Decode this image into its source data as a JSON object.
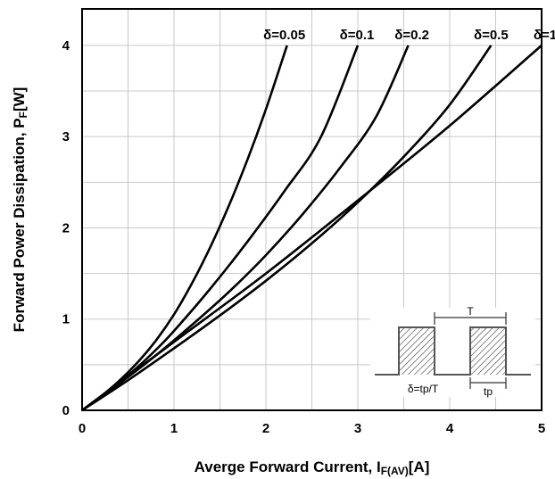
{
  "chart_data": {
    "type": "line",
    "title": "",
    "xlabel": "Averge Forward Current, I",
    "xlabel_sub": "F(AV)",
    "xlabel_unit": "[A]",
    "ylabel": "Forward Power Dissipation, P",
    "ylabel_sub": "F",
    "ylabel_unit": "[W]",
    "xlim": [
      0,
      5
    ],
    "ylim": [
      0,
      4.4
    ],
    "x_ticks": [
      0,
      1,
      2,
      3,
      4,
      5
    ],
    "y_ticks": [
      0,
      1,
      2,
      3,
      4
    ],
    "x_tick_labels": [
      "0",
      "1",
      "2",
      "3",
      "4",
      "5"
    ],
    "y_tick_labels": [
      "0",
      "1",
      "2",
      "3",
      "4"
    ],
    "grid": true,
    "series": [
      {
        "name": "δ=0.05",
        "x": [
          0,
          0.2,
          0.4,
          0.6,
          0.8,
          1.0,
          1.2,
          1.4,
          1.6,
          1.8,
          2.0,
          2.23
        ],
        "y": [
          0,
          0.15,
          0.32,
          0.52,
          0.76,
          1.05,
          1.4,
          1.8,
          2.25,
          2.75,
          3.3,
          4.0
        ]
      },
      {
        "name": "δ=0.1",
        "x": [
          0,
          0.2,
          0.4,
          0.6,
          0.8,
          1.0,
          1.4,
          1.8,
          2.2,
          2.6,
          3.0
        ],
        "y": [
          0,
          0.15,
          0.3,
          0.47,
          0.66,
          0.87,
          1.34,
          1.85,
          2.4,
          3.0,
          4.0
        ]
      },
      {
        "name": "δ=0.2",
        "x": [
          0,
          0.4,
          0.8,
          1.2,
          1.6,
          2.0,
          2.4,
          2.8,
          3.2,
          3.55
        ],
        "y": [
          0,
          0.29,
          0.6,
          0.94,
          1.3,
          1.7,
          2.15,
          2.65,
          3.22,
          4.0
        ]
      },
      {
        "name": "δ=0.5",
        "x": [
          0,
          0.5,
          1.0,
          1.5,
          2.0,
          2.5,
          3.0,
          3.5,
          4.0,
          4.45
        ],
        "y": [
          0,
          0.33,
          0.68,
          1.04,
          1.42,
          1.83,
          2.28,
          2.78,
          3.35,
          4.0
        ]
      },
      {
        "name": "δ=1",
        "x": [
          0,
          1,
          2,
          3,
          4,
          5
        ],
        "y": [
          0,
          0.75,
          1.5,
          2.3,
          3.12,
          4.0
        ]
      }
    ],
    "inset": {
      "period_label": "T",
      "pulse_label": "tp",
      "formula": "δ=tp/T"
    }
  }
}
